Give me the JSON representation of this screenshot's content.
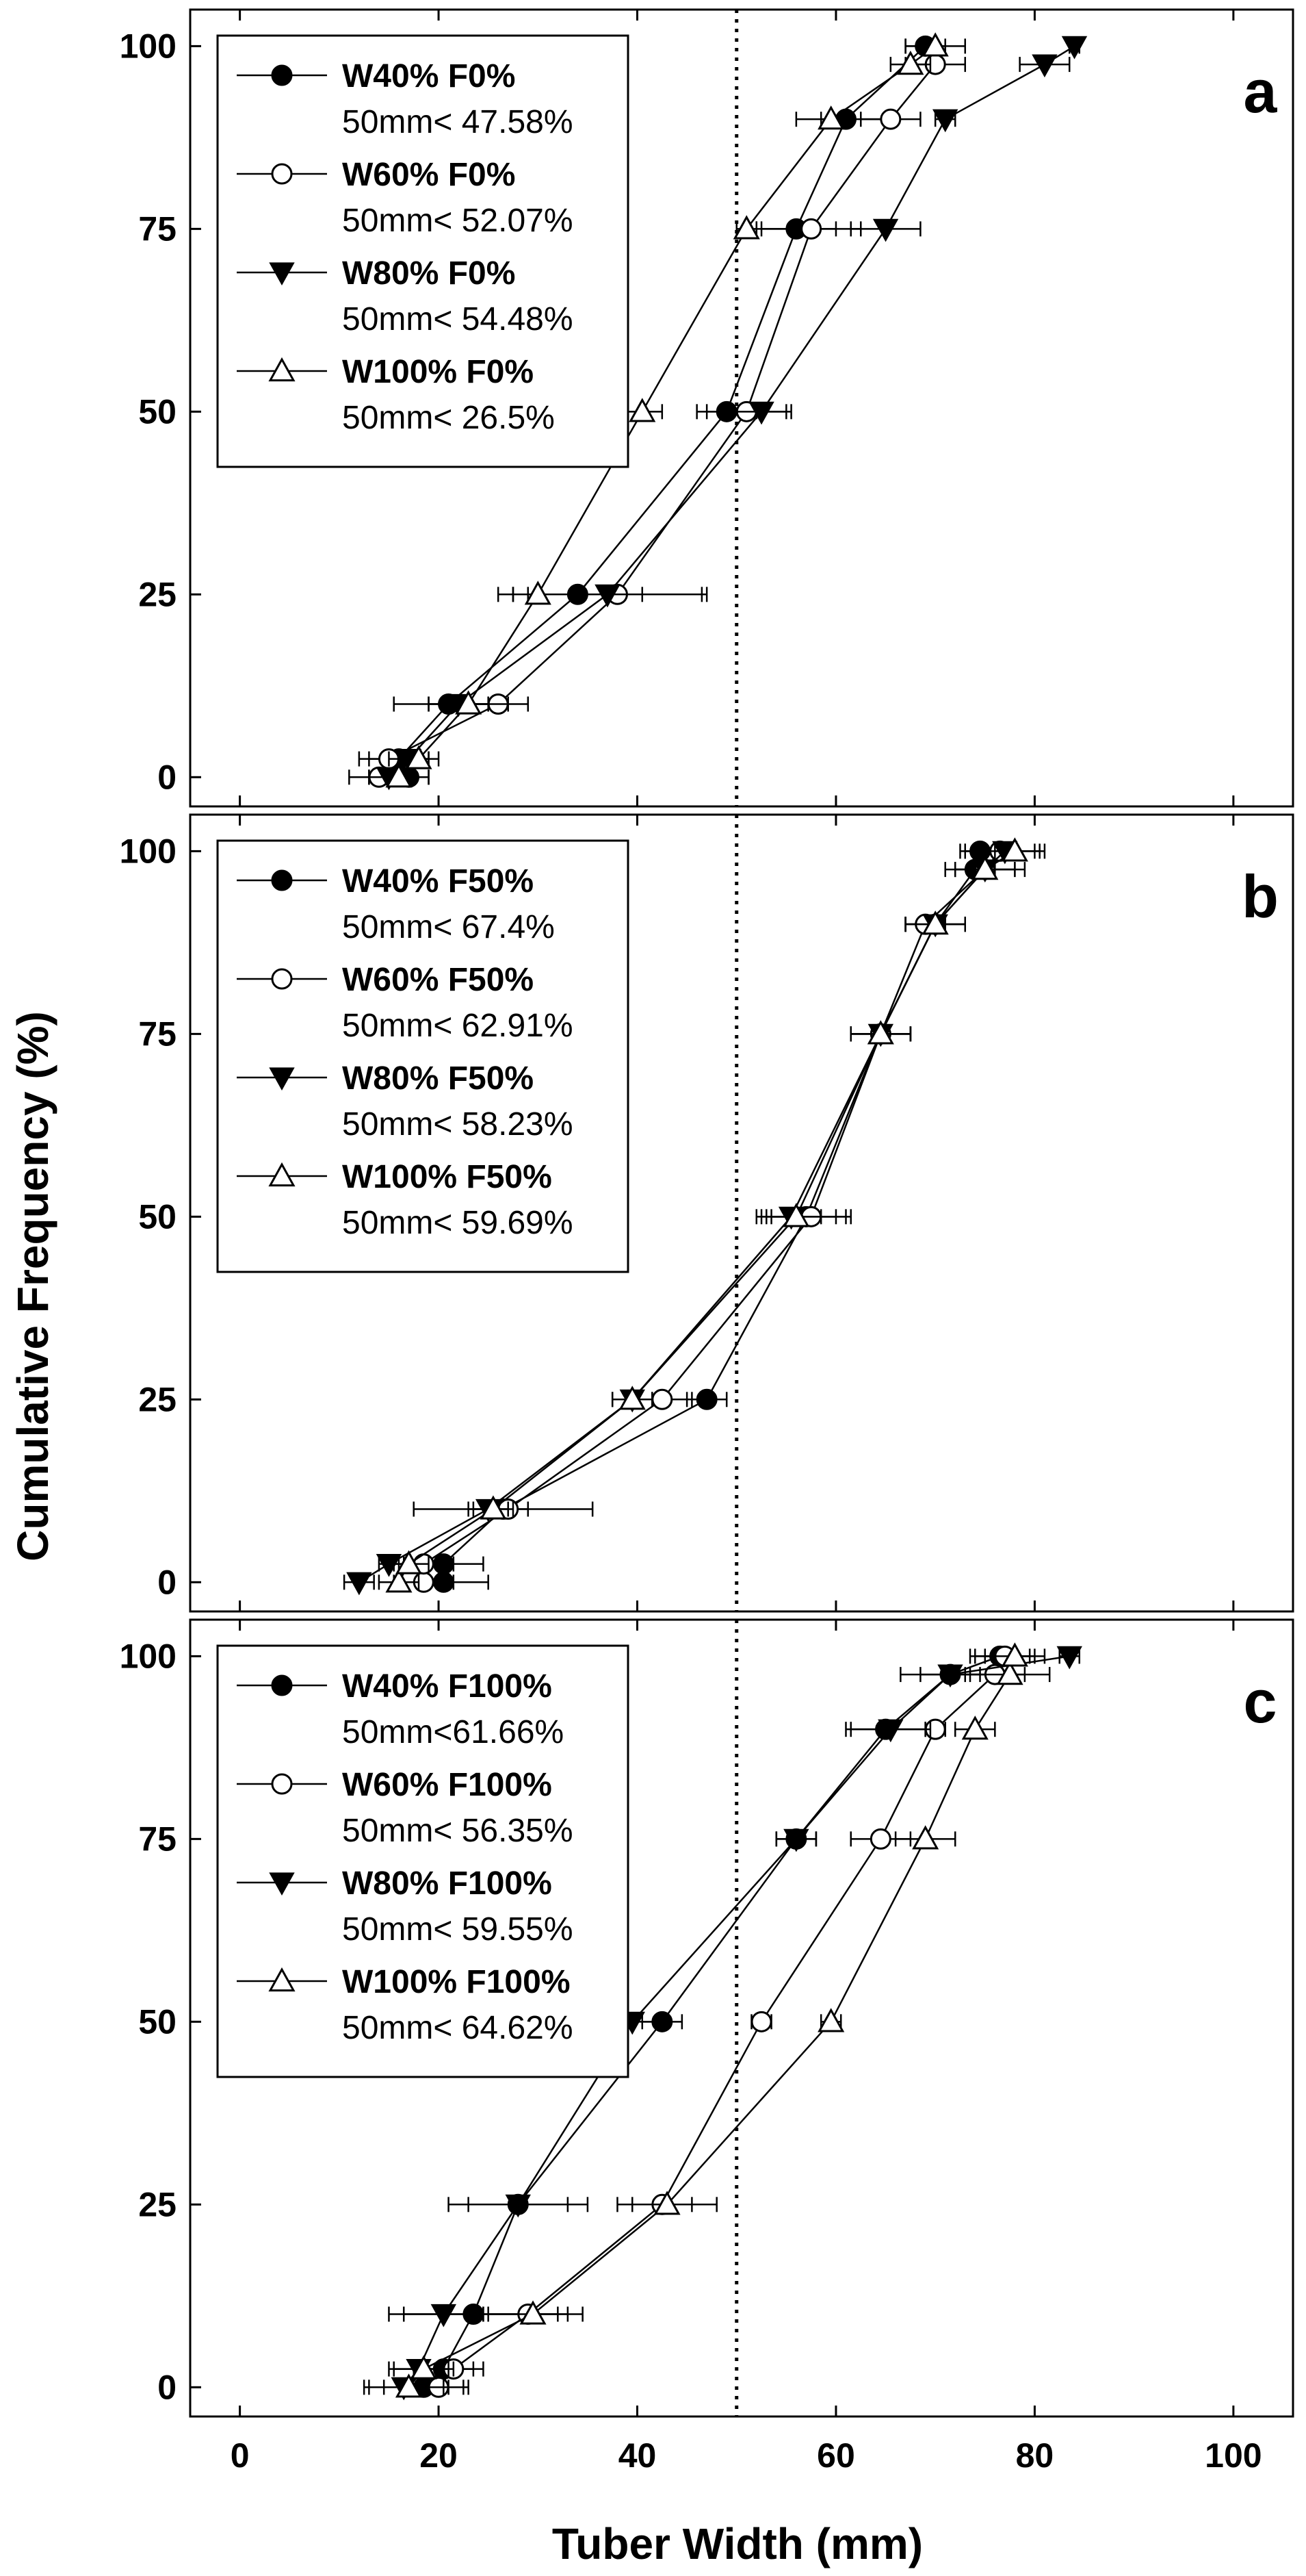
{
  "chart_data": {
    "type": "line",
    "xlabel": "Tuber Width (mm)",
    "ylabel": "Cumulative Frequency (%)",
    "xlim": [
      -5,
      106
    ],
    "ylim": [
      -4,
      105
    ],
    "x_ticks": [
      0,
      20,
      40,
      60,
      80,
      100
    ],
    "y_ticks": [
      0,
      25,
      50,
      75,
      100
    ],
    "reference_line_x": 50,
    "panels": [
      {
        "id": "a",
        "label": "a",
        "series": [
          {
            "name": "W40% F0%",
            "pct_text": "50mm< 47.58%",
            "marker": "circle-filled",
            "x": [
              17,
              16,
              21,
              34,
              49,
              56,
              61,
              69
            ],
            "y": [
              0,
              2.5,
              10,
              25,
              50,
              75,
              90,
              100
            ],
            "err": [
              2,
              3,
              5.5,
              6.5,
              3,
              4,
              5,
              2
            ]
          },
          {
            "name": "W60% F0%",
            "pct_text": "50mm< 52.07%",
            "marker": "circle-open",
            "x": [
              14,
              15,
              26,
              38,
              51,
              57.5,
              65.5,
              70
            ],
            "y": [
              0,
              2.5,
              10,
              25,
              50,
              75,
              90,
              97.5
            ],
            "err": [
              3,
              3,
              3,
              9,
              4,
              5,
              3,
              3
            ]
          },
          {
            "name": "W80% F0%",
            "pct_text": "50mm< 54.48%",
            "marker": "triangle-down-filled",
            "x": [
              15,
              17,
              22,
              37,
              52.5,
              65,
              71,
              81,
              84
            ],
            "y": [
              0,
              2.5,
              10,
              25,
              50,
              75,
              90,
              97.5,
              100
            ],
            "err": [
              2,
              2,
              3,
              9.5,
              3,
              3.5,
              1,
              2.5,
              0.5
            ]
          },
          {
            "name": "W100% F0%",
            "pct_text": "50mm< 26.5%",
            "marker": "triangle-up-open",
            "x": [
              16,
              18,
              23,
              30,
              40.5,
              51,
              59.5,
              67.5,
              70
            ],
            "y": [
              0,
              2.5,
              10,
              25,
              50,
              75,
              90,
              97.5,
              100
            ],
            "err": [
              3,
              2,
              4,
              4,
              2,
              1,
              1,
              2,
              3
            ]
          }
        ]
      },
      {
        "id": "b",
        "label": "b",
        "series": [
          {
            "name": "W40% F50%",
            "pct_text": "50mm< 67.4%",
            "marker": "circle-filled",
            "x": [
              20.5,
              20.5,
              26.5,
              47,
              57,
              64.5,
              70,
              74,
              74.5
            ],
            "y": [
              0,
              2.5,
              10,
              25,
              50,
              75,
              90,
              97.5,
              100
            ],
            "err": [
              4.5,
              4,
              9,
              2,
              4,
              3,
              3,
              2,
              1.5
            ]
          },
          {
            "name": "W60% F50%",
            "pct_text": "50mm< 62.91%",
            "marker": "circle-open",
            "x": [
              18.5,
              18.5,
              27,
              42.5,
              57.5,
              64.5,
              69,
              75,
              76.5
            ],
            "y": [
              0,
              2.5,
              10,
              25,
              50,
              75,
              90,
              97.5,
              100
            ],
            "err": [
              3,
              3,
              2,
              3,
              4,
              3,
              2,
              3,
              4
            ]
          },
          {
            "name": "W80% F50%",
            "pct_text": "50mm< 58.23%",
            "marker": "triangle-down-filled",
            "x": [
              12,
              15,
              25,
              39.5,
              55.5,
              64.5,
              70,
              75,
              77
            ],
            "y": [
              0,
              2.5,
              10,
              25,
              50,
              75,
              90,
              97.5,
              100
            ],
            "err": [
              1.5,
              1,
              2,
              2,
              3,
              3,
              3,
              4,
              4
            ]
          },
          {
            "name": "W100% F50%",
            "pct_text": "50mm< 59.69%",
            "marker": "triangle-up-open",
            "x": [
              16,
              17,
              25.5,
              39.5,
              56,
              64.5,
              70,
              75,
              78
            ],
            "y": [
              0,
              2.5,
              10,
              25,
              50,
              75,
              90,
              97.5,
              100
            ],
            "err": [
              2,
              2,
              2,
              2,
              4,
              3,
              3,
              3,
              2
            ]
          }
        ]
      },
      {
        "id": "c",
        "label": "c",
        "series": [
          {
            "name": "W40% F100%",
            "pct_text": "50mm<61.66%",
            "marker": "circle-filled",
            "x": [
              18.5,
              20.5,
              23.5,
              28,
              42.5,
              56,
              65,
              71.5,
              76.5
            ],
            "y": [
              0,
              2.5,
              10,
              25,
              50,
              75,
              90,
              97.5,
              100
            ],
            "err": [
              4,
              3,
              8.5,
              7,
              2,
              2,
              4,
              5,
              3
            ]
          },
          {
            "name": "W60% F100%",
            "pct_text": "50mm< 56.35%",
            "marker": "circle-open",
            "x": [
              20,
              21.5,
              29,
              42.5,
              52.5,
              64.5,
              70,
              76,
              77
            ],
            "y": [
              0,
              2.5,
              10,
              25,
              50,
              75,
              90,
              97.5,
              100
            ],
            "err": [
              3,
              3,
              4,
              3,
              1,
              3,
              1,
              3,
              3
            ]
          },
          {
            "name": "W80% F100%",
            "pct_text": "50mm< 59.55%",
            "marker": "triangle-down-filled",
            "x": [
              16.5,
              18,
              20.5,
              28,
              39.5,
              56,
              65.5,
              71.5,
              83.5
            ],
            "y": [
              0,
              2.5,
              10,
              25,
              50,
              75,
              90,
              97.5,
              100
            ],
            "err": [
              4,
              3,
              4,
              5,
              3,
              2,
              4,
              3,
              1
            ]
          },
          {
            "name": "W100% F100%",
            "pct_text": "50mm< 64.62%",
            "marker": "triangle-up-open",
            "x": [
              17,
              18.5,
              29.5,
              43,
              59.5,
              69,
              74,
              77.5,
              78
            ],
            "y": [
              0,
              2.5,
              10,
              25,
              50,
              75,
              90,
              97.5,
              100
            ],
            "err": [
              4,
              3,
              5,
              5,
              1,
              3,
              2,
              4,
              3
            ]
          }
        ]
      }
    ]
  }
}
